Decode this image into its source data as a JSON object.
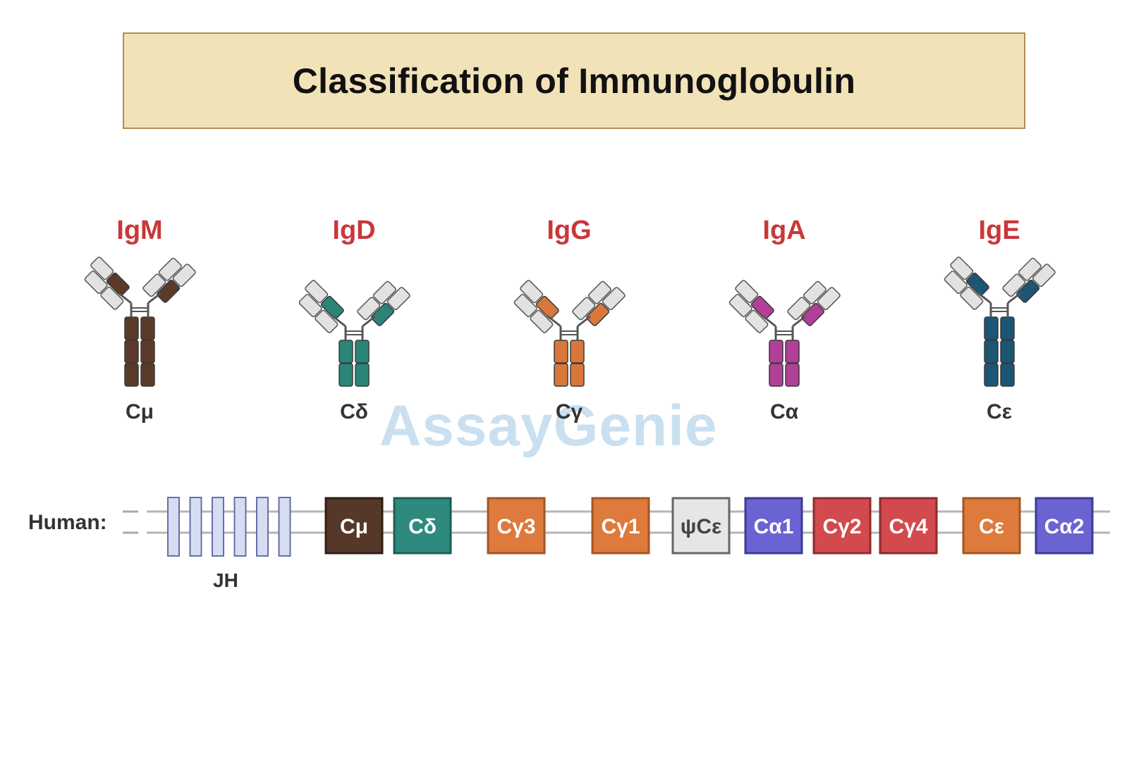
{
  "title": "Classification of Immunoglobulin",
  "watermark": "AssayGenie",
  "colors": {
    "igm": "#5b3a29",
    "igd": "#2a8579",
    "igg": "#d9773a",
    "iga": "#b23f98",
    "ige": "#1d5574",
    "label_red": "#c8383a",
    "light_chain": "#e2e2e2"
  },
  "antibodies": [
    {
      "name": "IgM",
      "constant": "Cμ",
      "color": "#5b3a29"
    },
    {
      "name": "IgD",
      "constant": "Cδ",
      "color": "#2a8579"
    },
    {
      "name": "IgG",
      "constant": "Cγ",
      "color": "#d9773a"
    },
    {
      "name": "IgA",
      "constant": "Cα",
      "color": "#b23f98"
    },
    {
      "name": "IgE",
      "constant": "Cε",
      "color": "#1d5574"
    }
  ],
  "locus": {
    "label": "Human:",
    "jh_label": "JH",
    "jh_segments": 6,
    "genes": [
      {
        "label": "Cμ",
        "fill": "#553828",
        "stroke": "#2f1f16",
        "text": "#ffffff"
      },
      {
        "label": "Cδ",
        "fill": "#2e8a7c",
        "stroke": "#1c5d54",
        "text": "#ffffff"
      },
      {
        "label": "Cγ3",
        "fill": "#dd7a3c",
        "stroke": "#a55424",
        "text": "#ffffff"
      },
      {
        "label": "Cγ1",
        "fill": "#dd7a3c",
        "stroke": "#a55424",
        "text": "#ffffff"
      },
      {
        "label": "ψCε",
        "fill": "#e6e6e6",
        "stroke": "#666666",
        "text": "#444444"
      },
      {
        "label": "Cα1",
        "fill": "#6a63d2",
        "stroke": "#3f3a93",
        "text": "#ffffff"
      },
      {
        "label": "Cγ2",
        "fill": "#d24a4e",
        "stroke": "#8e2a2e",
        "text": "#ffffff"
      },
      {
        "label": "Cγ4",
        "fill": "#d24a4e",
        "stroke": "#8e2a2e",
        "text": "#ffffff"
      },
      {
        "label": "Cε",
        "fill": "#dd7a3c",
        "stroke": "#a55424",
        "text": "#ffffff"
      },
      {
        "label": "Cα2",
        "fill": "#6a63d2",
        "stroke": "#3f3a93",
        "text": "#ffffff"
      }
    ]
  }
}
